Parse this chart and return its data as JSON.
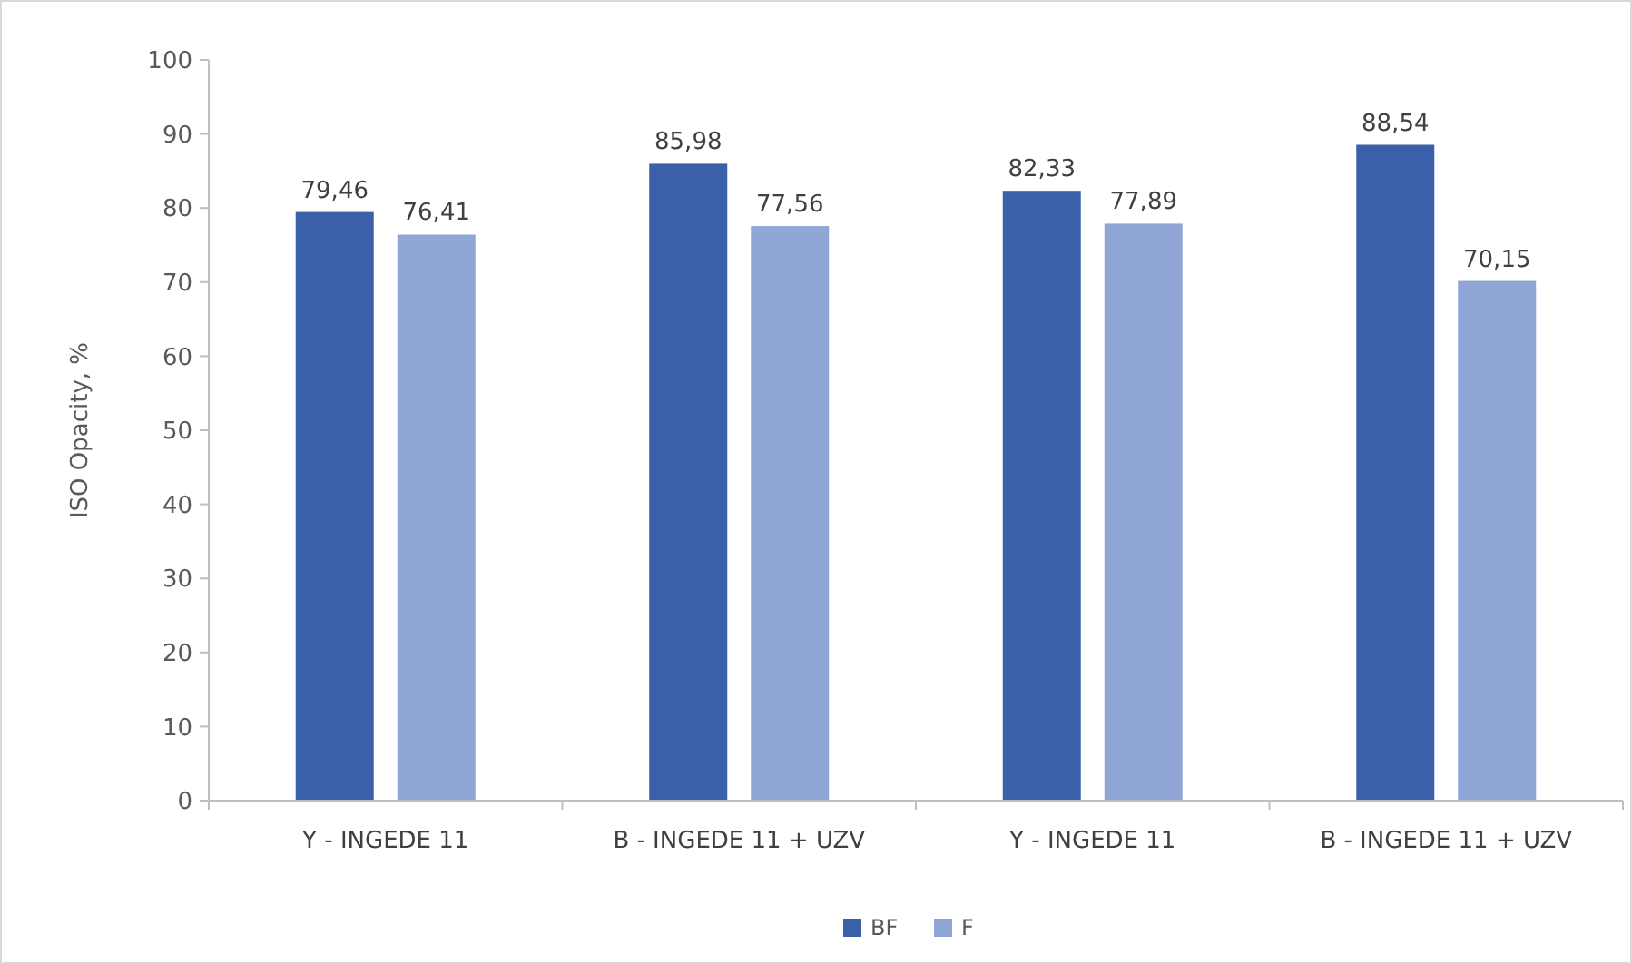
{
  "chart_data": {
    "type": "bar",
    "ylabel": "ISO Opacity, %",
    "categories": [
      "Y - INGEDE 11",
      "B - INGEDE 11 + UZV",
      "Y - INGEDE 11",
      "B - INGEDE 11 + UZV"
    ],
    "series": [
      {
        "name": "BF",
        "color": "#3a60aa",
        "values": [
          79.46,
          85.98,
          82.33,
          88.54
        ],
        "value_labels": [
          "79,46",
          "85,98",
          "82,33",
          "88,54"
        ]
      },
      {
        "name": "F",
        "color": "#90a6d6",
        "values": [
          76.41,
          77.56,
          77.89,
          70.15
        ],
        "value_labels": [
          "76,41",
          "77,56",
          "77,89",
          "70,15"
        ]
      }
    ],
    "ylim": [
      0,
      100
    ],
    "yticks": [
      0,
      10,
      20,
      30,
      40,
      50,
      60,
      70,
      80,
      90,
      100
    ],
    "grid": false,
    "legend": "bottom"
  }
}
